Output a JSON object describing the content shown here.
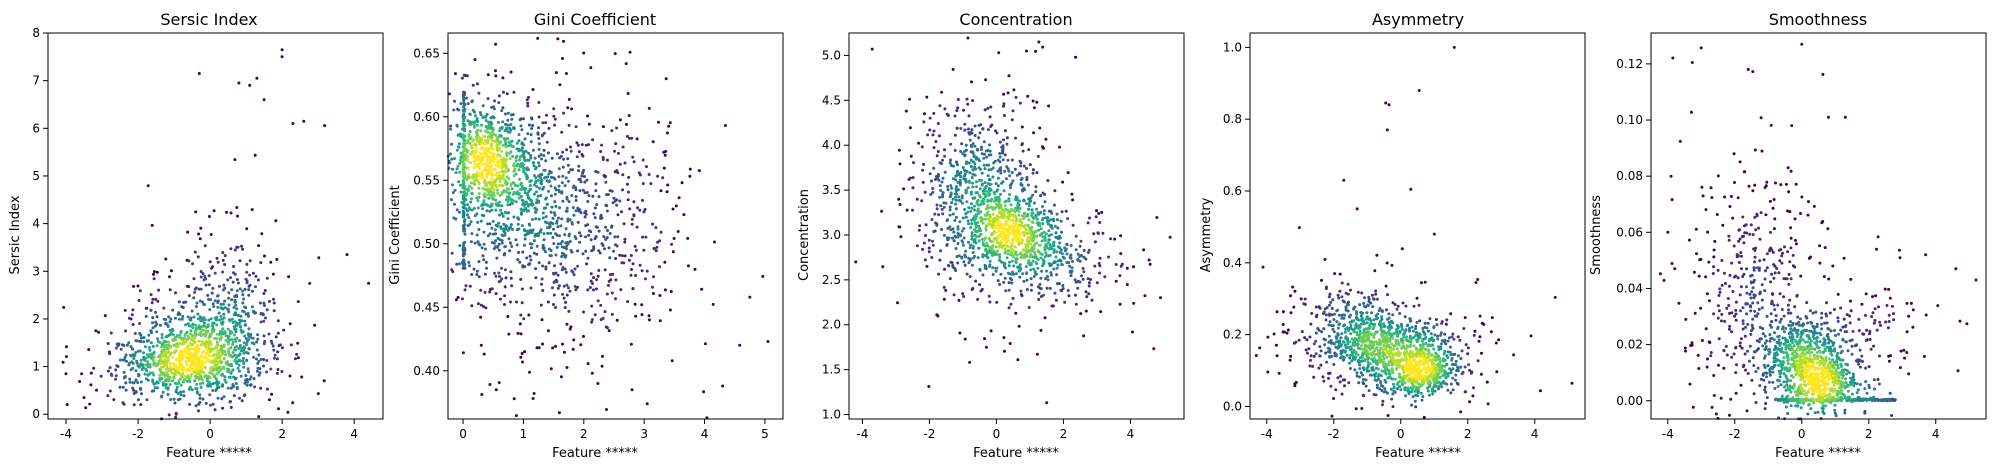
{
  "colors": {
    "viridis": [
      "#440154",
      "#482878",
      "#3e4989",
      "#31688e",
      "#26828e",
      "#1f9e89",
      "#35b779",
      "#6ece58",
      "#b5de2b",
      "#fde725"
    ],
    "axis": "#000000",
    "background": "#ffffff"
  },
  "chart_data": [
    {
      "type": "scatter",
      "title": "Sersic Index",
      "xlabel": "Feature *****",
      "ylabel": "Sersic Index",
      "xlim": [
        -4.5,
        4.8
      ],
      "ylim": [
        -0.1,
        8.0
      ],
      "xticks": [
        -4,
        -2,
        0,
        2,
        4
      ],
      "yticks": [
        0,
        1,
        2,
        3,
        4,
        5,
        6,
        7,
        8
      ],
      "color_encoding": "point density (viridis)",
      "clusters": [
        {
          "cx": -0.4,
          "cy": 1.25,
          "sx": 0.95,
          "sy": 0.45,
          "weight": 0.62
        },
        {
          "cx": 0.3,
          "cy": 2.1,
          "sx": 0.8,
          "sy": 0.85,
          "weight": 0.25
        },
        {
          "cx": -1.3,
          "cy": 0.9,
          "sx": 0.7,
          "sy": 0.3,
          "weight": 0.13
        }
      ],
      "outliers": [
        [
          2.0,
          7.65
        ],
        [
          2.0,
          7.5
        ],
        [
          -0.3,
          7.15
        ],
        [
          0.8,
          6.95
        ],
        [
          1.1,
          6.9
        ],
        [
          1.3,
          7.05
        ],
        [
          1.5,
          6.6
        ],
        [
          2.3,
          6.1
        ],
        [
          2.6,
          6.15
        ],
        [
          3.8,
          3.35
        ],
        [
          4.4,
          2.75
        ],
        [
          -4.0,
          0.85
        ],
        [
          -3.5,
          0.35
        ]
      ],
      "n_points": 1400
    },
    {
      "type": "scatter",
      "title": "Gini Coefficient",
      "xlabel": "Feature *****",
      "ylabel": "Gini Coefficient",
      "xlim": [
        -0.25,
        5.3
      ],
      "ylim": [
        0.362,
        0.666
      ],
      "xticks": [
        0,
        1,
        2,
        3,
        4,
        5
      ],
      "yticks": [
        0.4,
        0.45,
        0.5,
        0.55,
        0.6,
        0.65
      ],
      "color_encoding": "point density (viridis)",
      "clusters": [
        {
          "cx": 0.35,
          "cy": 0.572,
          "sx": 0.25,
          "sy": 0.018,
          "weight": 0.28
        },
        {
          "cx": 0.8,
          "cy": 0.535,
          "sx": 0.5,
          "sy": 0.035,
          "weight": 0.35
        },
        {
          "cx": 1.8,
          "cy": 0.515,
          "sx": 0.85,
          "sy": 0.045,
          "weight": 0.37
        }
      ],
      "edge_column": {
        "x": 0.0,
        "y_range": [
          0.48,
          0.62
        ]
      },
      "outliers": [
        [
          5.05,
          0.423
        ],
        [
          4.75,
          0.458
        ],
        [
          3.05,
          0.374
        ],
        [
          2.8,
          0.385
        ],
        [
          4.3,
          0.388
        ],
        [
          0.55,
          0.385
        ]
      ],
      "n_points": 1700
    },
    {
      "type": "scatter",
      "title": "Concentration",
      "xlabel": "Feature *****",
      "ylabel": "Concentration",
      "xlim": [
        -4.4,
        5.6
      ],
      "ylim": [
        0.95,
        5.25
      ],
      "xticks": [
        -4,
        -2,
        0,
        2,
        4
      ],
      "yticks": [
        1.0,
        1.5,
        2.0,
        2.5,
        3.0,
        3.5,
        4.0,
        4.5,
        5.0
      ],
      "color_encoding": "point density (viridis)",
      "clusters": [
        {
          "cx": 0.6,
          "cy": 3.0,
          "sx": 0.7,
          "sy": 0.22,
          "weight": 0.4
        },
        {
          "cx": -0.5,
          "cy": 3.5,
          "sx": 0.85,
          "sy": 0.45,
          "weight": 0.45
        },
        {
          "cx": 1.8,
          "cy": 2.7,
          "sx": 1.1,
          "sy": 0.25,
          "weight": 0.15
        }
      ],
      "outliers": [
        [
          0.9,
          5.05
        ],
        [
          1.5,
          1.13
        ],
        [
          -0.8,
          1.58
        ],
        [
          -0.3,
          1.75
        ],
        [
          -4.2,
          2.7
        ],
        [
          4.9,
          2.3
        ]
      ],
      "n_points": 1500
    },
    {
      "type": "scatter",
      "title": "Asymmetry",
      "xlabel": "Feature *****",
      "ylabel": "Asymmetry",
      "xlim": [
        -4.5,
        5.5
      ],
      "ylim": [
        -0.035,
        1.04
      ],
      "xticks": [
        -4,
        -2,
        0,
        2,
        4
      ],
      "yticks": [
        0.0,
        0.2,
        0.4,
        0.6,
        0.8,
        1.0
      ],
      "color_encoding": "point density (viridis)",
      "clusters": [
        {
          "cx": -0.1,
          "cy": 0.15,
          "sx": 1.0,
          "sy": 0.05,
          "weight": 0.55
        },
        {
          "cx": 0.7,
          "cy": 0.1,
          "sx": 0.45,
          "sy": 0.03,
          "weight": 0.25
        },
        {
          "cx": -1.5,
          "cy": 0.23,
          "sx": 0.8,
          "sy": 0.06,
          "weight": 0.2
        }
      ],
      "outliers": [
        [
          1.6,
          1.0
        ],
        [
          0.55,
          0.88
        ],
        [
          -0.35,
          0.84
        ],
        [
          -0.45,
          0.845
        ],
        [
          -0.4,
          0.77
        ],
        [
          0.3,
          0.605
        ],
        [
          -1.7,
          0.63
        ],
        [
          1.0,
          0.48
        ],
        [
          -1.3,
          0.55
        ]
      ],
      "n_points": 1500
    },
    {
      "type": "scatter",
      "title": "Smoothness",
      "xlabel": "Feature *****",
      "ylabel": "Smoothness",
      "xlim": [
        -4.5,
        5.5
      ],
      "ylim": [
        -0.0065,
        0.131
      ],
      "xticks": [
        -4,
        -2,
        0,
        2,
        4
      ],
      "yticks": [
        0.0,
        0.02,
        0.04,
        0.06,
        0.08,
        0.1,
        0.12
      ],
      "color_encoding": "point density (viridis)",
      "clusters": [
        {
          "cx": 0.0,
          "cy": 0.015,
          "sx": 0.65,
          "sy": 0.008,
          "weight": 0.45
        },
        {
          "cx": 0.7,
          "cy": 0.006,
          "sx": 0.45,
          "sy": 0.004,
          "weight": 0.2
        },
        {
          "cx": -1.5,
          "cy": 0.04,
          "sx": 0.9,
          "sy": 0.022,
          "weight": 0.25
        },
        {
          "cx": 1.5,
          "cy": 0.02,
          "sx": 1.0,
          "sy": 0.012,
          "weight": 0.1
        }
      ],
      "floor_row": {
        "y": 0.0,
        "x_range": [
          -0.8,
          2.8
        ]
      },
      "outliers": [
        [
          0.0,
          0.127
        ],
        [
          -1.6,
          0.118
        ],
        [
          0.8,
          0.101
        ],
        [
          1.3,
          0.101
        ],
        [
          -0.3,
          0.098
        ],
        [
          3.7,
          0.052
        ],
        [
          4.6,
          0.047
        ],
        [
          5.2,
          0.043
        ],
        [
          -3.9,
          0.08
        ],
        [
          -4.0,
          0.06
        ]
      ],
      "n_points": 1500
    }
  ]
}
